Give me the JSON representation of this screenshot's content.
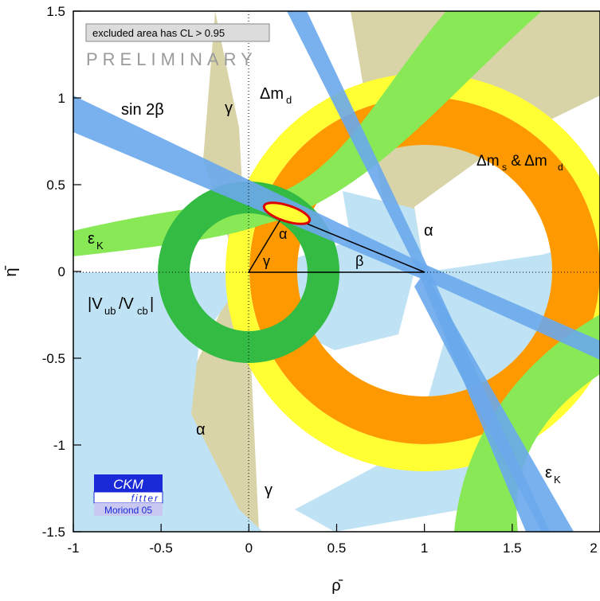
{
  "chart_data": {
    "type": "contour",
    "xlabel": "ρ̄",
    "ylabel": "η̄",
    "xlim": [
      -1,
      2
    ],
    "ylim": [
      -1.5,
      1.5
    ],
    "x_ticks": [
      "-1",
      "-0.5",
      "0",
      "0.5",
      "1",
      "1.5",
      "2"
    ],
    "y_ticks": [
      "-1.5",
      "-1",
      "-0.5",
      "0",
      "0.5",
      "1",
      "1.5"
    ],
    "grid": false,
    "legend_box": "excluded area has CL > 0.95",
    "watermark": "PRELIMINARY",
    "logo": {
      "line1": "CKM",
      "line2": "fitter",
      "line3": "Moriond 05"
    },
    "apex": {
      "rho": 0.2,
      "eta": 0.33
    },
    "triangle": [
      [
        0,
        0
      ],
      [
        1,
        0
      ],
      [
        0.2,
        0.33
      ]
    ],
    "constraints": [
      {
        "name": "sin2β",
        "type": "band",
        "color": "#6aa8ec"
      },
      {
        "name": "γ",
        "type": "region",
        "color": "#d8d4a8"
      },
      {
        "name": "α",
        "type": "region",
        "color": "#bfe3f5"
      },
      {
        "name": "Δmd",
        "type": "ring",
        "color": "#ffff33"
      },
      {
        "name": "Δms & Δmd",
        "type": "ring",
        "color": "#ff9900"
      },
      {
        "name": "εK",
        "type": "hyperbola",
        "color": "#88e855"
      },
      {
        "name": "|Vub/Vcb|",
        "type": "ring",
        "color": "#33bb44"
      }
    ]
  },
  "labels": {
    "sin2b": "sin 2β",
    "gamma_top": "γ",
    "gamma_bottom": "γ",
    "gamma_tri": "γ",
    "alpha_right": "α",
    "alpha_left": "α",
    "alpha_tri": "α",
    "beta_tri": "β",
    "dmd_base": "Δm",
    "dmd_sub": "d",
    "dms_base": "Δm",
    "dms_sub1": "s",
    "dms_mid": " & Δm",
    "dms_sub2": "d",
    "epsk_base": "ε",
    "epsk_sub": "K",
    "vub_1": "|V",
    "vub_sub1": "ub",
    "vub_2": "/V",
    "vub_sub2": "cb",
    "vub_3": "|"
  }
}
